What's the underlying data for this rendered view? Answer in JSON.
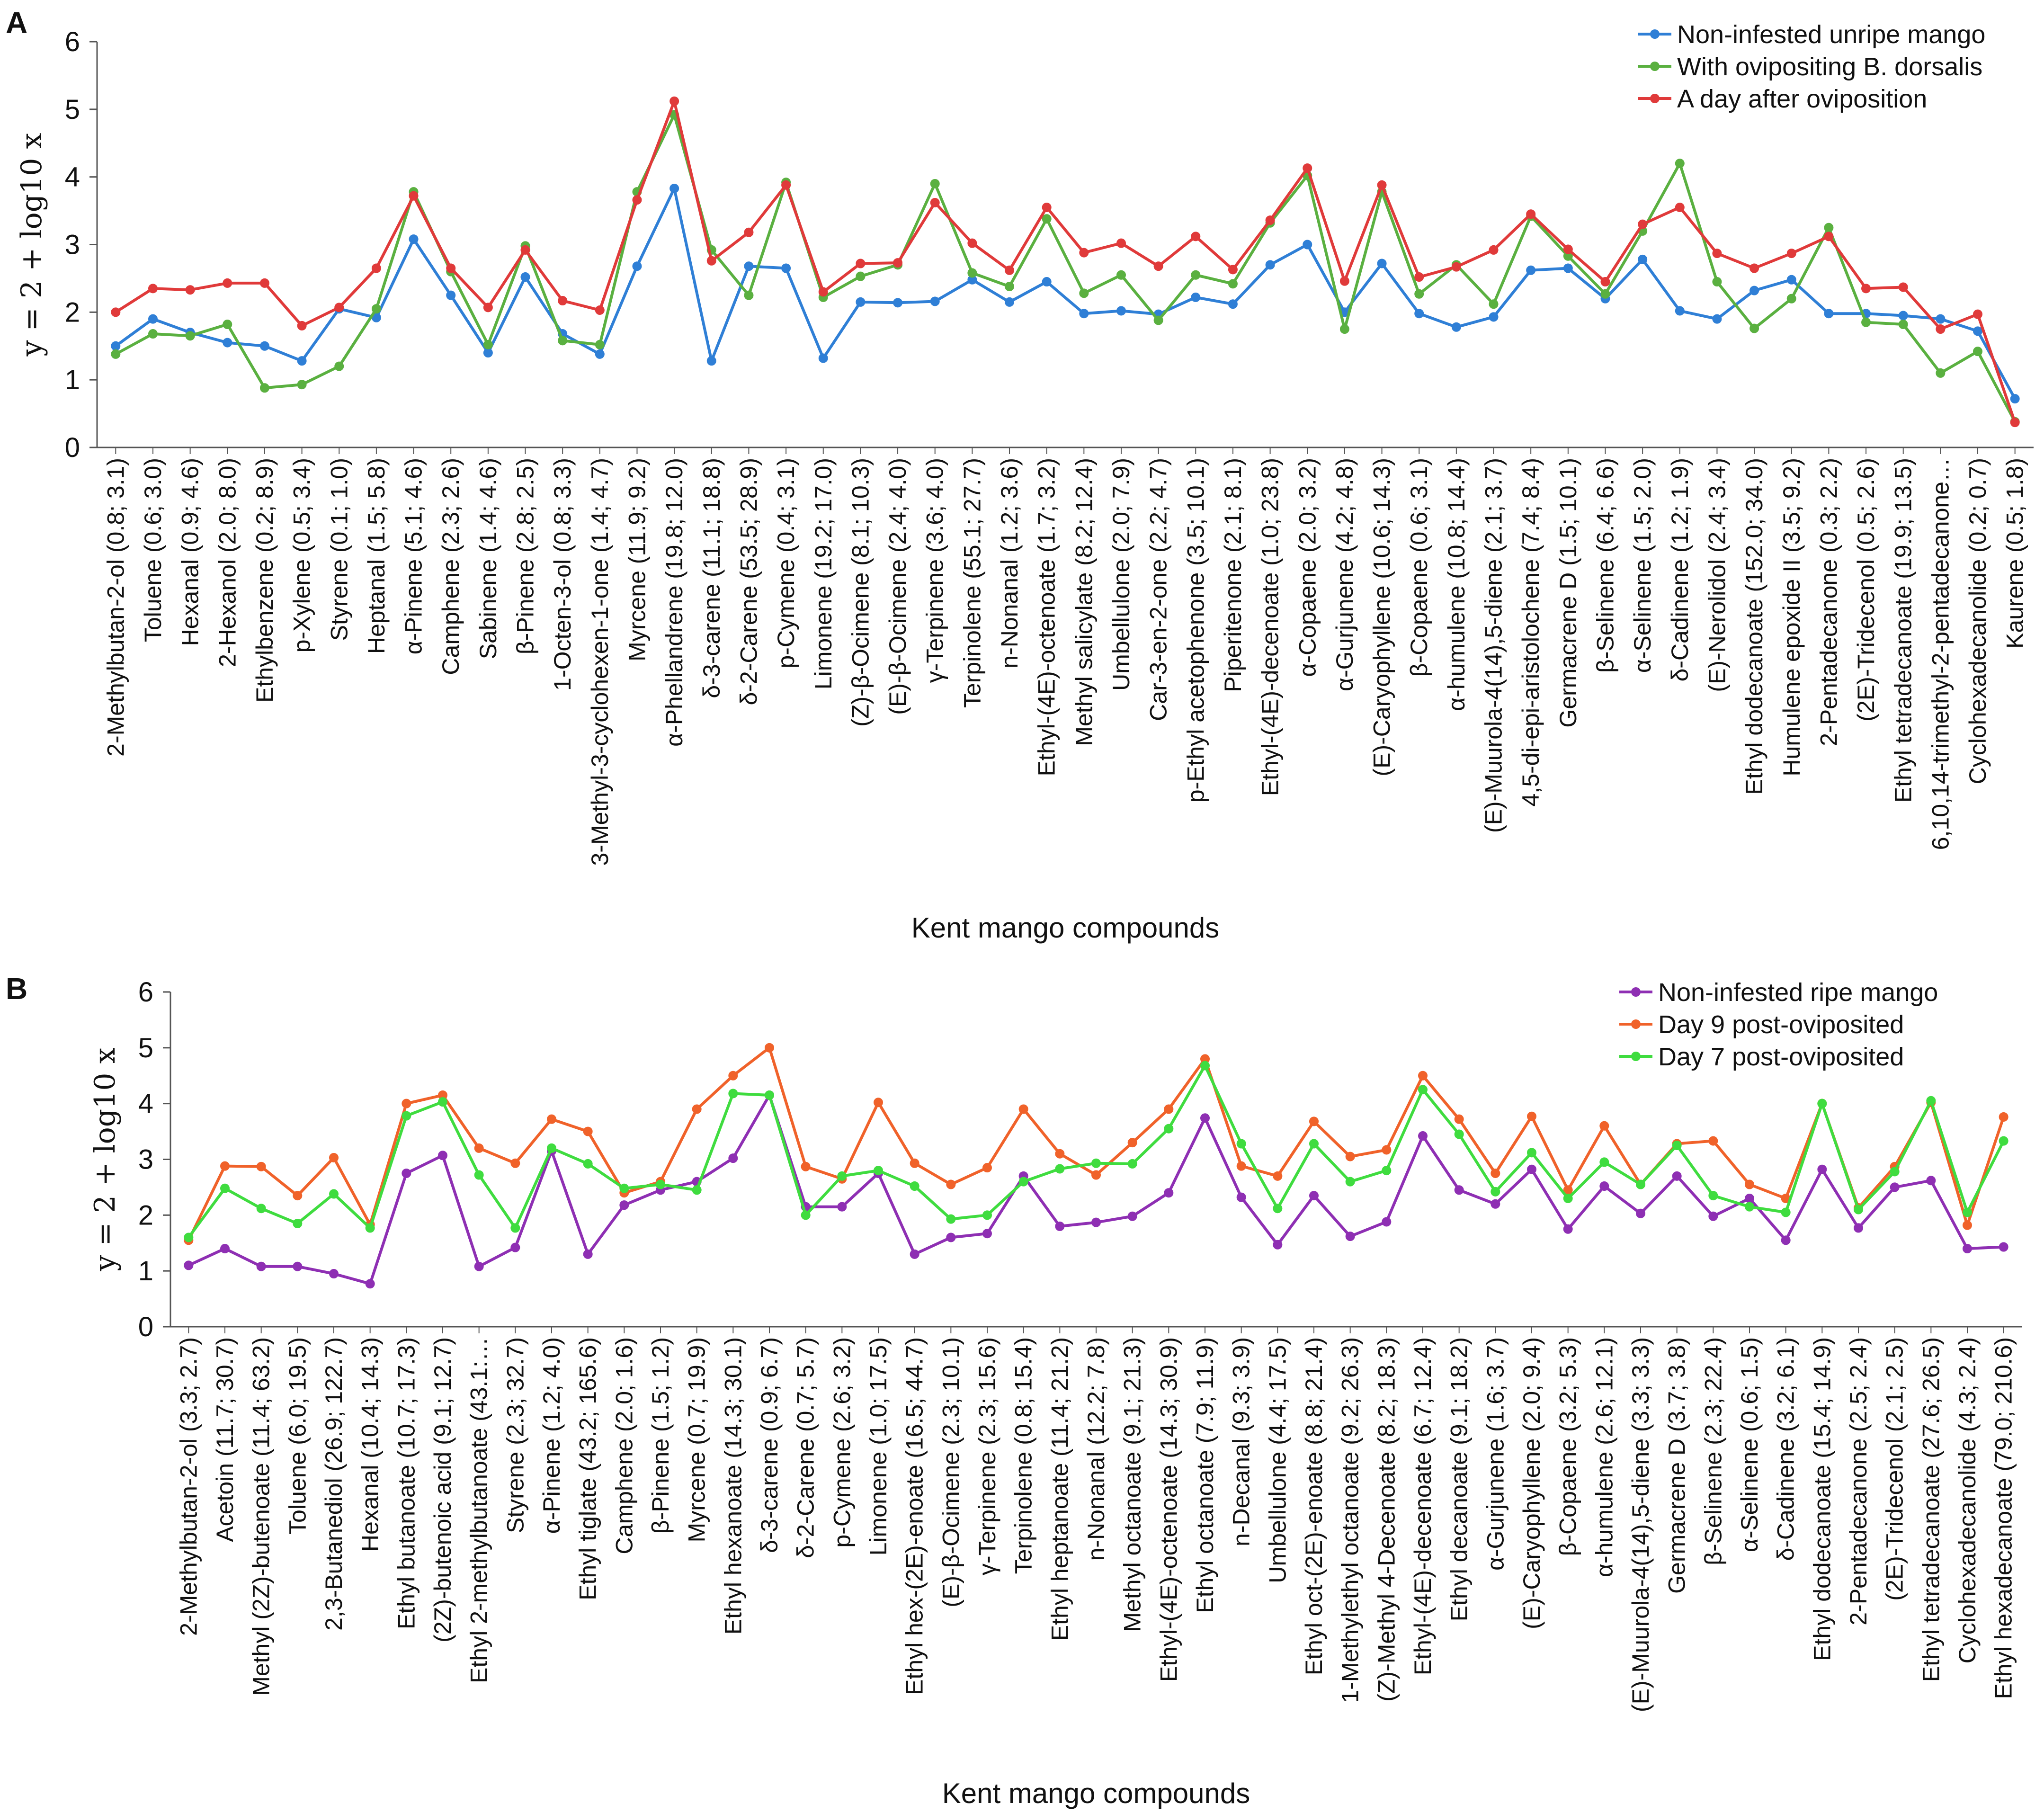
{
  "chart_data": [
    {
      "type": "line",
      "panel_label": "A",
      "ylabel": "y = 2 + log10 x",
      "xlabel": "Kent mango compounds",
      "ylim": [
        0,
        6
      ],
      "yticks": [
        "0",
        "1",
        "2",
        "3",
        "4",
        "5",
        "6"
      ],
      "grid": false,
      "legend_position": "top-right",
      "categories": [
        "2-Methylbutan-2-ol (0.8; 3.1)",
        "Toluene (0.6; 3.0)",
        "Hexanal (0.9; 4.6)",
        "2-Hexanol (2.0; 8.0)",
        "Ethylbenzene (0.2; 8.9)",
        "p-Xylene (0.5; 3.4)",
        "Styrene (0.1; 1.0)",
        "Heptanal (1.5; 5.8)",
        "α-Pinene (5.1; 4.6)",
        "Camphene (2.3; 2.6)",
        "Sabinene (1.4; 4.6)",
        "β-Pinene (2.8; 2.5)",
        "1-Octen-3-ol (0.8; 3.3)",
        "3-Methyl-3-cyclohexen-1-one (1.4; 4.7)",
        "Myrcene (11.9; 9.2)",
        "α-Phellandrene (19.8; 12.0)",
        "δ-3-carene (11.1; 18.8)",
        "δ-2-Carene (53.5; 28.9)",
        "p-Cymene (0.4; 3.1)",
        "Limonene (19.2; 17.0)",
        "(Z)-β-Ocimene (8.1; 10.3)",
        "(E)-β-Ocimene (2.4; 4.0)",
        "γ-Terpinene (3.6; 4.0)",
        "Terpinolene (55.1; 27.7)",
        "n-Nonanal (1.2; 3.6)",
        "Ethyl-(4E)-octenoate (1.7; 3.2)",
        "Methyl salicylate (8.2; 12.4)",
        "Umbellulone (2.0; 7.9)",
        "Car-3-en-2-one (2.2; 4.7)",
        "p-Ethyl acetophenone (3.5; 10.1)",
        "Piperitenone (2.1; 8.1)",
        "Ethyl-(4E)-decenoate (1.0; 23.8)",
        "α-Copaene (2.0; 3.2)",
        "α-Gurjunene (4.2; 4.8)",
        "(E)-Caryophyllene (10.6; 14.3)",
        "β-Copaene (0.6; 3.1)",
        "α-humulene (10.8; 14.4)",
        "(E)-Muurola-4(14),5-diene (2.1; 3.7)",
        "4,5-di-epi-aristolochene (7.4; 8.4)",
        "Germacrene D (1.5; 10.1)",
        "β-Selinene (6.4; 6.6)",
        "α-Selinene (1.5; 2.0)",
        "δ-Cadinene (1.2; 1.9)",
        "(E)-Nerolidol (2.4; 3.4)",
        "Ethyl dodecanoate (152.0; 34.0)",
        "Humulene epoxide II (3.5; 9.2)",
        "2-Pentadecanone (0.3; 2.2)",
        "(2E)-Tridecenol (0.5; 2.6)",
        "Ethyl tetradecanoate (19.9; 13.5)",
        "6,10,14-trimethyl-2-pentadecanone…",
        "Cyclohexadecanolide (0.2; 0.7)",
        "Kaurene (0.5; 1.8)"
      ],
      "series": [
        {
          "name": "Non-infested unripe mango",
          "color": "#2f7fd6",
          "values": [
            1.5,
            1.9,
            1.7,
            1.55,
            1.5,
            1.28,
            2.05,
            1.92,
            3.08,
            2.25,
            1.4,
            2.52,
            1.68,
            1.38,
            2.68,
            3.83,
            1.28,
            2.68,
            2.65,
            1.32,
            2.15,
            2.14,
            2.16,
            2.48,
            2.15,
            2.45,
            1.98,
            2.02,
            1.97,
            2.22,
            2.12,
            2.7,
            3.0,
            2.0,
            2.72,
            1.98,
            1.78,
            1.93,
            2.62,
            2.65,
            2.2,
            2.78,
            2.02,
            1.9,
            2.32,
            2.48,
            1.98,
            1.98,
            1.95,
            1.9,
            1.72,
            0.72
          ]
        },
        {
          "name": "With ovipositing B. dorsalis",
          "color": "#5ab040",
          "values": [
            1.38,
            1.68,
            1.65,
            1.82,
            0.88,
            0.93,
            1.2,
            2.05,
            3.78,
            2.6,
            1.52,
            2.98,
            1.58,
            1.52,
            3.78,
            4.92,
            2.92,
            2.25,
            3.92,
            2.22,
            2.53,
            2.7,
            3.9,
            2.58,
            2.38,
            3.38,
            2.28,
            2.55,
            1.88,
            2.55,
            2.42,
            3.32,
            4.02,
            1.75,
            3.78,
            2.27,
            2.7,
            2.12,
            3.42,
            2.83,
            2.27,
            3.2,
            4.2,
            2.45,
            1.76,
            2.2,
            3.25,
            1.85,
            1.82,
            1.1,
            1.42,
            0.38
          ]
        },
        {
          "name": "A day after oviposition",
          "color": "#e03a3a",
          "values": [
            2.0,
            2.35,
            2.33,
            2.43,
            2.43,
            1.8,
            2.07,
            2.65,
            3.72,
            2.65,
            2.07,
            2.92,
            2.17,
            2.03,
            3.66,
            5.12,
            2.76,
            3.18,
            3.88,
            2.3,
            2.72,
            2.73,
            3.62,
            3.02,
            2.62,
            3.55,
            2.88,
            3.02,
            2.68,
            3.12,
            2.63,
            3.36,
            4.13,
            2.46,
            3.88,
            2.52,
            2.67,
            2.92,
            3.45,
            2.93,
            2.45,
            3.3,
            3.55,
            2.87,
            2.65,
            2.87,
            3.12,
            2.35,
            2.37,
            1.75,
            1.97,
            0.37
          ]
        }
      ]
    },
    {
      "type": "line",
      "panel_label": "B",
      "ylabel": "y = 2 + log10 x",
      "xlabel": "Kent mango compounds",
      "ylim": [
        0,
        6
      ],
      "yticks": [
        "0",
        "1",
        "2",
        "3",
        "4",
        "5",
        "6"
      ],
      "grid": false,
      "legend_position": "top-right",
      "categories": [
        "2-Methylbutan-2-ol (3.3; 2.7)",
        "Acetoin (11.7; 30.7)",
        "Methyl (2Z)-butenoate (11.4; 63.2)",
        "Toluene (6.0; 19.5)",
        "2,3-Butanediol (26.9; 122.7)",
        "Hexanal (10.4; 14.3)",
        "Ethyl butanoate (10.7; 17.3)",
        "(2Z)-butenoic acid (9.1; 12.7)",
        "Ethyl 2-methylbutanoate (43.1:…",
        "Styrene (2.3; 32.7)",
        "α-Pinene (1.2; 4.0)",
        "Ethyl tiglate (43.2; 165.6)",
        "Camphene (2.0; 1.6)",
        "β-Pinene (1.5; 1.2)",
        "Myrcene (0.7; 19.9)",
        "Ethyl hexanoate (14.3; 30.1)",
        "δ-3-carene (0.9; 6.7)",
        "δ-2-Carene (0.7; 5.7)",
        "p-Cymene (2.6; 3.2)",
        "Limonene (1.0; 17.5)",
        "Ethyl hex-(2E)-enoate (16.5; 44.7)",
        "(E)-β-Ocimene (2.3; 10.1)",
        "γ-Terpinene (2.3; 15.6)",
        "Terpinolene (0.8; 15.4)",
        "Ethyl heptanoate (11.4; 21.2)",
        "n-Nonanal (12.2; 7.8)",
        "Methyl octanoate (9.1; 21.3)",
        "Ethyl-(4E)-octenoate (14.3; 30.9)",
        "Ethyl octanoate (7.9; 11.9)",
        "n-Decanal (9.3; 3.9)",
        "Umbellulone (4.4; 17.5)",
        "Ethyl oct-(2E)-enoate (8.8; 21.4)",
        "1-Methylethyl octanoate (9.2; 26.3)",
        "(Z)-Methyl 4-Decenoate (8.2; 18.3)",
        "Ethyl-(4E)-decenoate (6.7; 12.4)",
        "Ethyl decanoate (9.1; 18.2)",
        "α-Gurjunene (1.6; 3.7)",
        "(E)-Caryophyllene (2.0; 9.4)",
        "β-Copaene (3.2; 5.3)",
        "α-humulene (2.6; 12.1)",
        "(E)-Muurola-4(14),5-diene (3.3; 3.3)",
        "Germacrene D (3.7; 3.8)",
        "β-Selinene (2.3; 22.4)",
        "α-Selinene (0.6; 1.5)",
        "δ-Cadinene (3.2; 6.1)",
        "Ethyl dodecanoate (15.4; 14.9)",
        "2-Pentadecanone (2.5; 2.4)",
        "(2E)-Tridecenol (2.1; 2.5)",
        "Ethyl tetradecanoate (27.6; 26.5)",
        "Cyclohexadecanolide (4.3; 2.4)",
        "Ethyl hexadecanoate (79.0; 210.6)"
      ],
      "series": [
        {
          "name": "Non-infested ripe mango",
          "color": "#8e2fb3",
          "values": [
            1.1,
            1.4,
            1.08,
            1.08,
            0.95,
            0.77,
            2.75,
            3.07,
            1.08,
            1.42,
            3.15,
            1.3,
            2.18,
            2.45,
            2.6,
            3.02,
            4.15,
            2.15,
            2.15,
            2.75,
            1.3,
            1.6,
            1.67,
            2.7,
            1.8,
            1.87,
            1.98,
            2.4,
            3.74,
            2.32,
            1.47,
            2.35,
            1.62,
            1.88,
            3.42,
            2.45,
            2.2,
            2.82,
            1.75,
            2.52,
            2.03,
            2.7,
            1.98,
            2.3,
            1.55,
            2.82,
            1.77,
            2.5,
            2.62,
            1.4,
            1.43
          ]
        },
        {
          "name": "Day 9 post-oviposited",
          "color": "#f0622a",
          "values": [
            1.55,
            2.88,
            2.87,
            2.35,
            3.03,
            1.83,
            4.0,
            4.15,
            3.2,
            2.93,
            3.72,
            3.5,
            2.4,
            2.6,
            3.9,
            4.5,
            5.0,
            2.87,
            2.65,
            4.02,
            2.93,
            2.55,
            2.85,
            3.9,
            3.1,
            2.72,
            3.3,
            3.9,
            4.8,
            2.88,
            2.7,
            3.68,
            3.05,
            3.17,
            4.5,
            3.72,
            2.75,
            3.77,
            2.45,
            3.6,
            2.55,
            3.28,
            3.33,
            2.55,
            2.3,
            4.0,
            2.13,
            2.87,
            4.02,
            1.82,
            3.76
          ]
        },
        {
          "name": "Day 7 post-oviposited",
          "color": "#3fdc3f",
          "values": [
            1.6,
            2.48,
            2.12,
            1.85,
            2.38,
            1.77,
            3.78,
            4.03,
            2.72,
            1.77,
            3.2,
            2.92,
            2.48,
            2.55,
            2.45,
            4.18,
            4.15,
            2.0,
            2.7,
            2.8,
            2.52,
            1.93,
            2.0,
            2.6,
            2.83,
            2.93,
            2.92,
            3.55,
            4.68,
            3.28,
            2.12,
            3.28,
            2.6,
            2.8,
            4.25,
            3.45,
            2.42,
            3.12,
            2.3,
            2.95,
            2.55,
            3.25,
            2.35,
            2.15,
            2.05,
            4.0,
            2.1,
            2.78,
            4.05,
            2.05,
            3.33
          ]
        }
      ]
    }
  ]
}
